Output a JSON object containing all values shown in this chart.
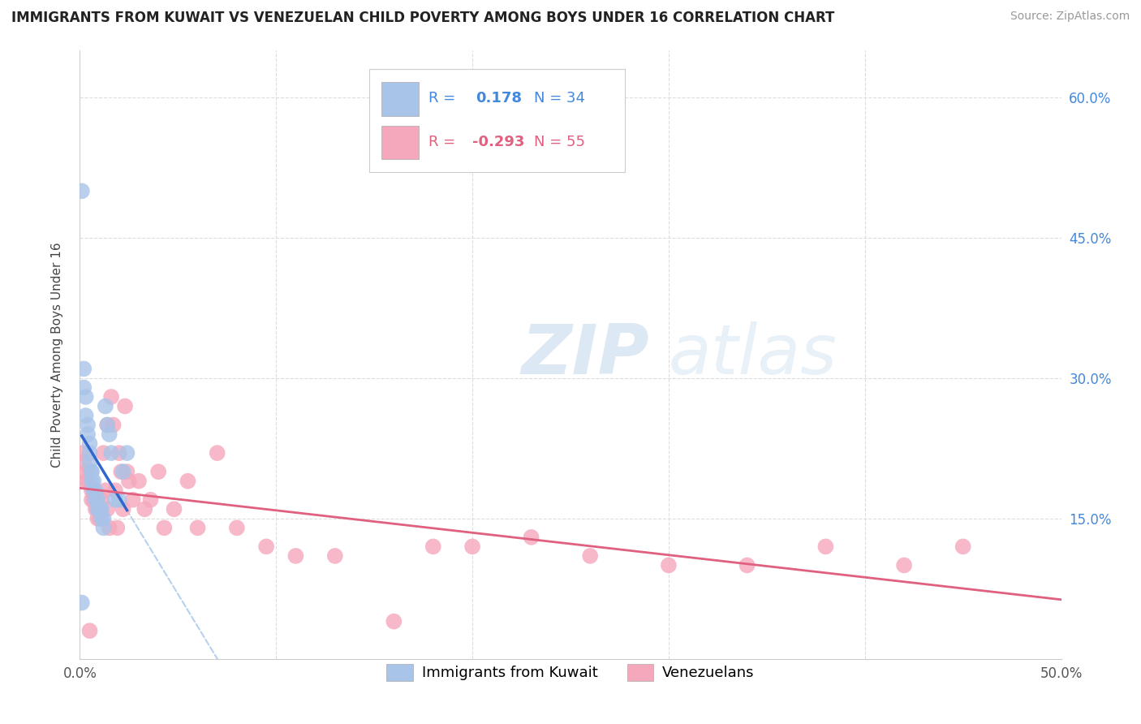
{
  "title": "IMMIGRANTS FROM KUWAIT VS VENEZUELAN CHILD POVERTY AMONG BOYS UNDER 16 CORRELATION CHART",
  "source": "Source: ZipAtlas.com",
  "ylabel": "Child Poverty Among Boys Under 16",
  "xlim": [
    0.0,
    0.5
  ],
  "ylim": [
    0.0,
    0.65
  ],
  "blue_color": "#a8c4e8",
  "pink_color": "#f5a8bc",
  "blue_line_color": "#3366cc",
  "pink_line_color": "#e06080",
  "dashed_line_color": "#b8d0f0",
  "watermark_zip": "ZIP",
  "watermark_atlas": "atlas",
  "kuwait_x": [
    0.001,
    0.002,
    0.002,
    0.003,
    0.003,
    0.004,
    0.004,
    0.005,
    0.005,
    0.005,
    0.006,
    0.006,
    0.006,
    0.007,
    0.007,
    0.008,
    0.008,
    0.009,
    0.009,
    0.01,
    0.01,
    0.011,
    0.011,
    0.012,
    0.012,
    0.013,
    0.014,
    0.015,
    0.016,
    0.018,
    0.02,
    0.022,
    0.024,
    0.001
  ],
  "kuwait_y": [
    0.5,
    0.31,
    0.29,
    0.28,
    0.26,
    0.25,
    0.24,
    0.23,
    0.22,
    0.21,
    0.2,
    0.2,
    0.19,
    0.19,
    0.18,
    0.18,
    0.17,
    0.17,
    0.16,
    0.16,
    0.16,
    0.16,
    0.15,
    0.15,
    0.14,
    0.27,
    0.25,
    0.24,
    0.22,
    0.17,
    0.17,
    0.2,
    0.22,
    0.06
  ],
  "venezuela_x": [
    0.001,
    0.002,
    0.003,
    0.003,
    0.004,
    0.005,
    0.006,
    0.006,
    0.007,
    0.007,
    0.008,
    0.009,
    0.009,
    0.01,
    0.011,
    0.012,
    0.013,
    0.014,
    0.014,
    0.015,
    0.016,
    0.017,
    0.018,
    0.019,
    0.02,
    0.021,
    0.022,
    0.023,
    0.024,
    0.025,
    0.027,
    0.03,
    0.033,
    0.036,
    0.04,
    0.043,
    0.048,
    0.055,
    0.06,
    0.07,
    0.08,
    0.095,
    0.11,
    0.13,
    0.16,
    0.18,
    0.2,
    0.23,
    0.26,
    0.3,
    0.34,
    0.38,
    0.42,
    0.45,
    0.005
  ],
  "venezuela_y": [
    0.22,
    0.21,
    0.2,
    0.19,
    0.19,
    0.2,
    0.18,
    0.17,
    0.17,
    0.18,
    0.16,
    0.16,
    0.15,
    0.15,
    0.17,
    0.22,
    0.18,
    0.25,
    0.16,
    0.14,
    0.28,
    0.25,
    0.18,
    0.14,
    0.22,
    0.2,
    0.16,
    0.27,
    0.2,
    0.19,
    0.17,
    0.19,
    0.16,
    0.17,
    0.2,
    0.14,
    0.16,
    0.19,
    0.14,
    0.22,
    0.14,
    0.12,
    0.11,
    0.11,
    0.04,
    0.12,
    0.12,
    0.13,
    0.11,
    0.1,
    0.1,
    0.12,
    0.1,
    0.12,
    0.03
  ]
}
